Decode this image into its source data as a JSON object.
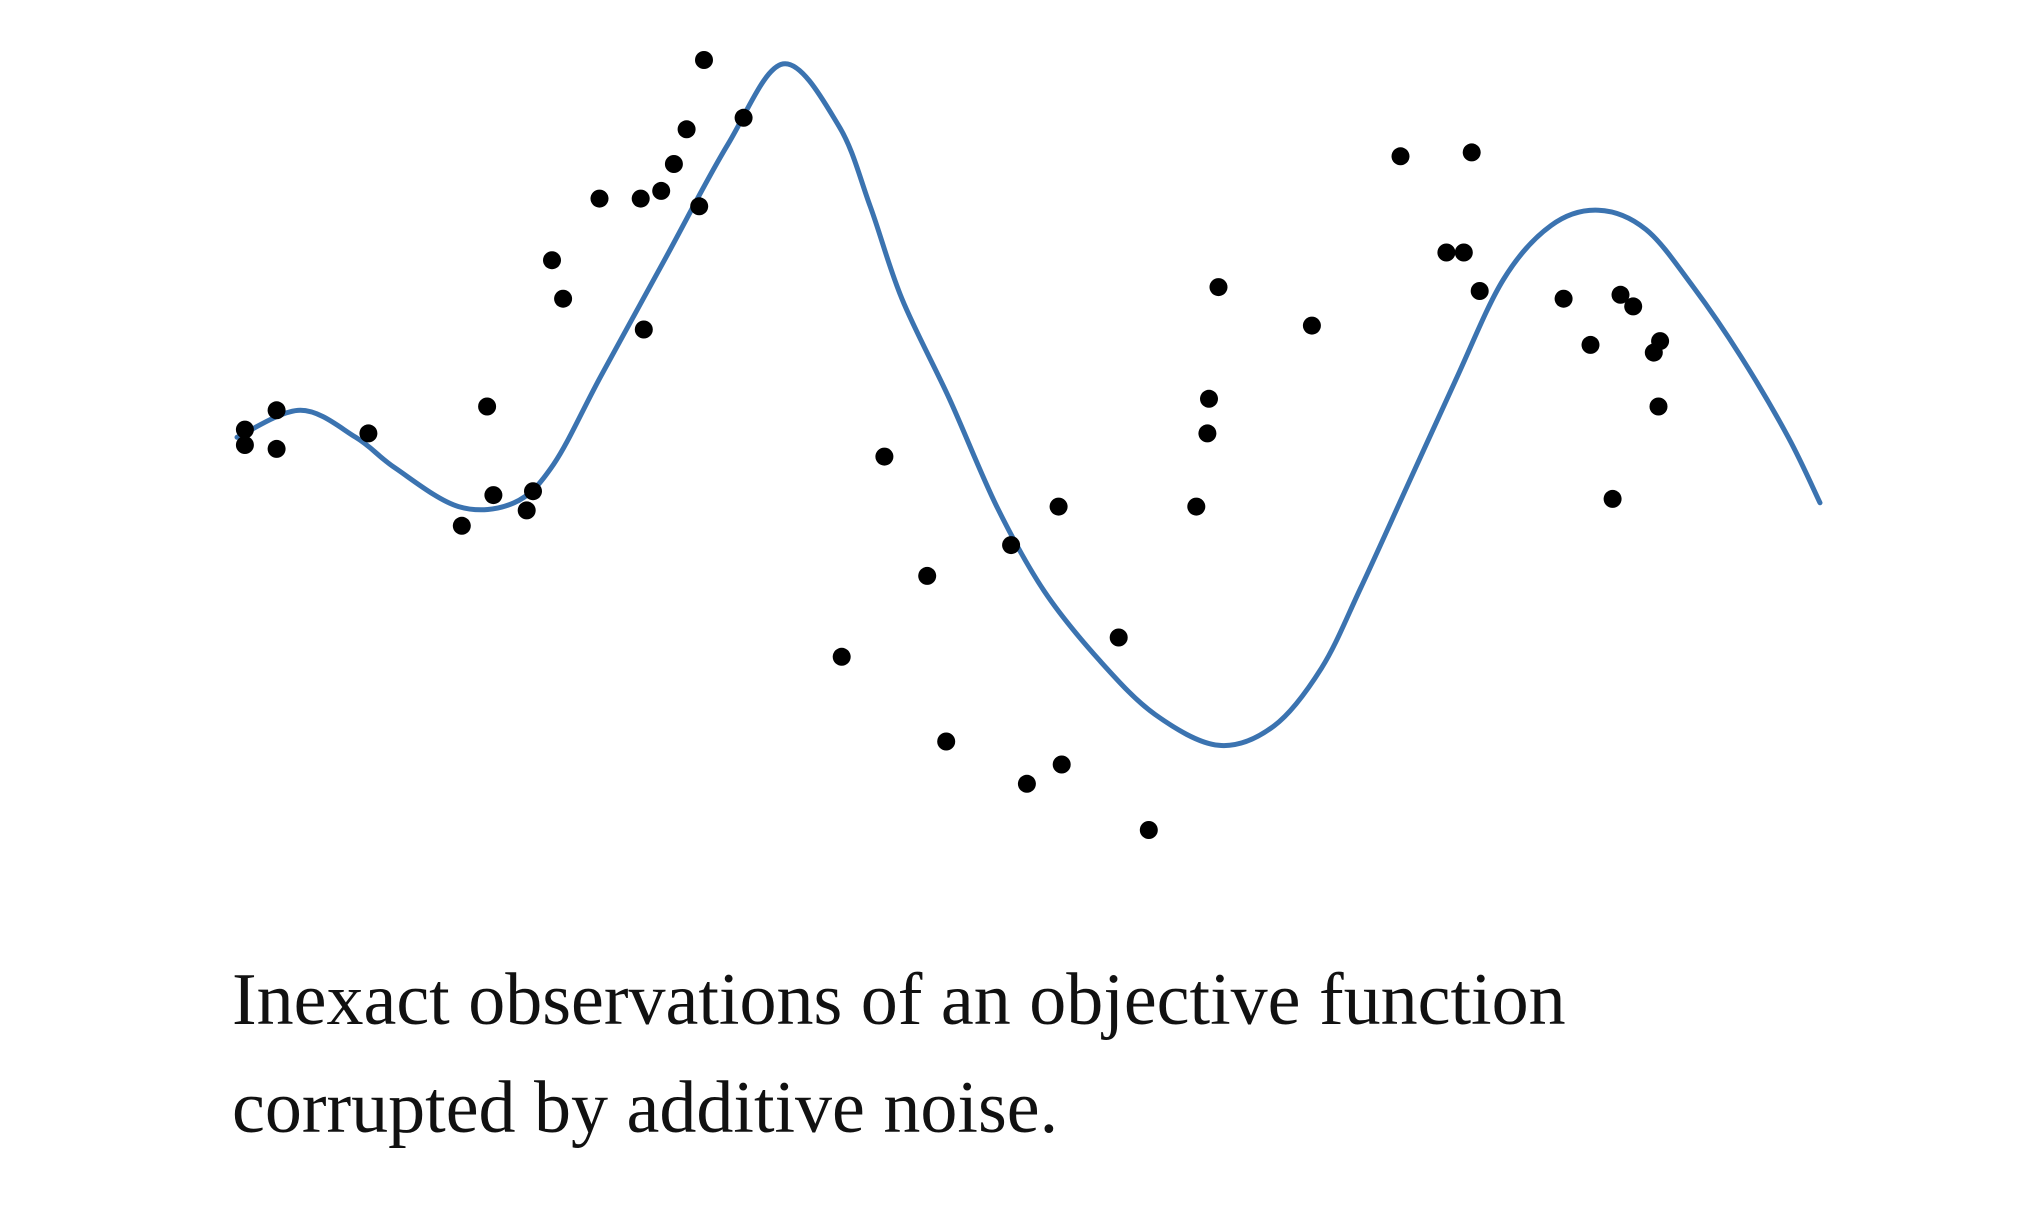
{
  "caption": {
    "line1": "Inexact observations of an objective function",
    "line2": "corrupted by additive noise."
  },
  "chart_data": {
    "type": "scatter",
    "title": "",
    "xlabel": "",
    "ylabel": "",
    "xlim": [
      0,
      1
    ],
    "ylim": [
      -1.0,
      1.0
    ],
    "grid": false,
    "legend": "none",
    "colors": {
      "curve": "#3b73b0",
      "points": "#000000"
    },
    "series": [
      {
        "kind": "line",
        "x": [
          0.0,
          0.04,
          0.075,
          0.1,
          0.14,
          0.175,
          0.2,
          0.23,
          0.27,
          0.31,
          0.345,
          0.38,
          0.4,
          0.42,
          0.45,
          0.48,
          0.51,
          0.545,
          0.58,
          0.62,
          0.655,
          0.685,
          0.71,
          0.74,
          0.77,
          0.8,
          0.83,
          0.86,
          0.89,
          0.92,
          0.95,
          0.98,
          1.0
        ],
        "y": [
          0.02,
          0.09,
          0.02,
          -0.06,
          -0.16,
          -0.15,
          -0.05,
          0.18,
          0.48,
          0.78,
          0.99,
          0.83,
          0.62,
          0.38,
          0.12,
          -0.16,
          -0.38,
          -0.56,
          -0.7,
          -0.78,
          -0.73,
          -0.58,
          -0.37,
          -0.1,
          0.17,
          0.43,
          0.57,
          0.61,
          0.56,
          0.41,
          0.23,
          0.02,
          -0.15
        ]
      },
      {
        "kind": "points",
        "x": [
          0.005,
          0.005,
          0.025,
          0.025,
          0.083,
          0.142,
          0.158,
          0.162,
          0.183,
          0.187,
          0.199,
          0.206,
          0.229,
          0.255,
          0.257,
          0.268,
          0.276,
          0.284,
          0.292,
          0.295,
          0.32,
          0.382,
          0.409,
          0.436,
          0.448,
          0.489,
          0.499,
          0.519,
          0.521,
          0.557,
          0.576,
          0.606,
          0.613,
          0.614,
          0.62,
          0.679,
          0.735,
          0.764,
          0.775,
          0.78,
          0.785,
          0.838,
          0.855,
          0.869,
          0.874,
          0.882,
          0.895,
          0.898,
          0.899
        ],
        "y": [
          0.04,
          0.0,
          0.09,
          -0.01,
          0.03,
          -0.21,
          0.1,
          -0.13,
          -0.17,
          -0.12,
          0.48,
          0.38,
          0.64,
          0.64,
          0.3,
          0.66,
          0.73,
          0.82,
          0.62,
          1.0,
          0.85,
          -0.55,
          -0.03,
          -0.34,
          -0.77,
          -0.26,
          -0.88,
          -0.16,
          -0.83,
          -0.5,
          -1.0,
          -0.16,
          0.03,
          0.12,
          0.41,
          0.31,
          0.75,
          0.5,
          0.5,
          0.76,
          0.4,
          0.38,
          0.26,
          -0.14,
          0.39,
          0.36,
          0.24,
          0.1,
          0.27
        ]
      }
    ]
  }
}
